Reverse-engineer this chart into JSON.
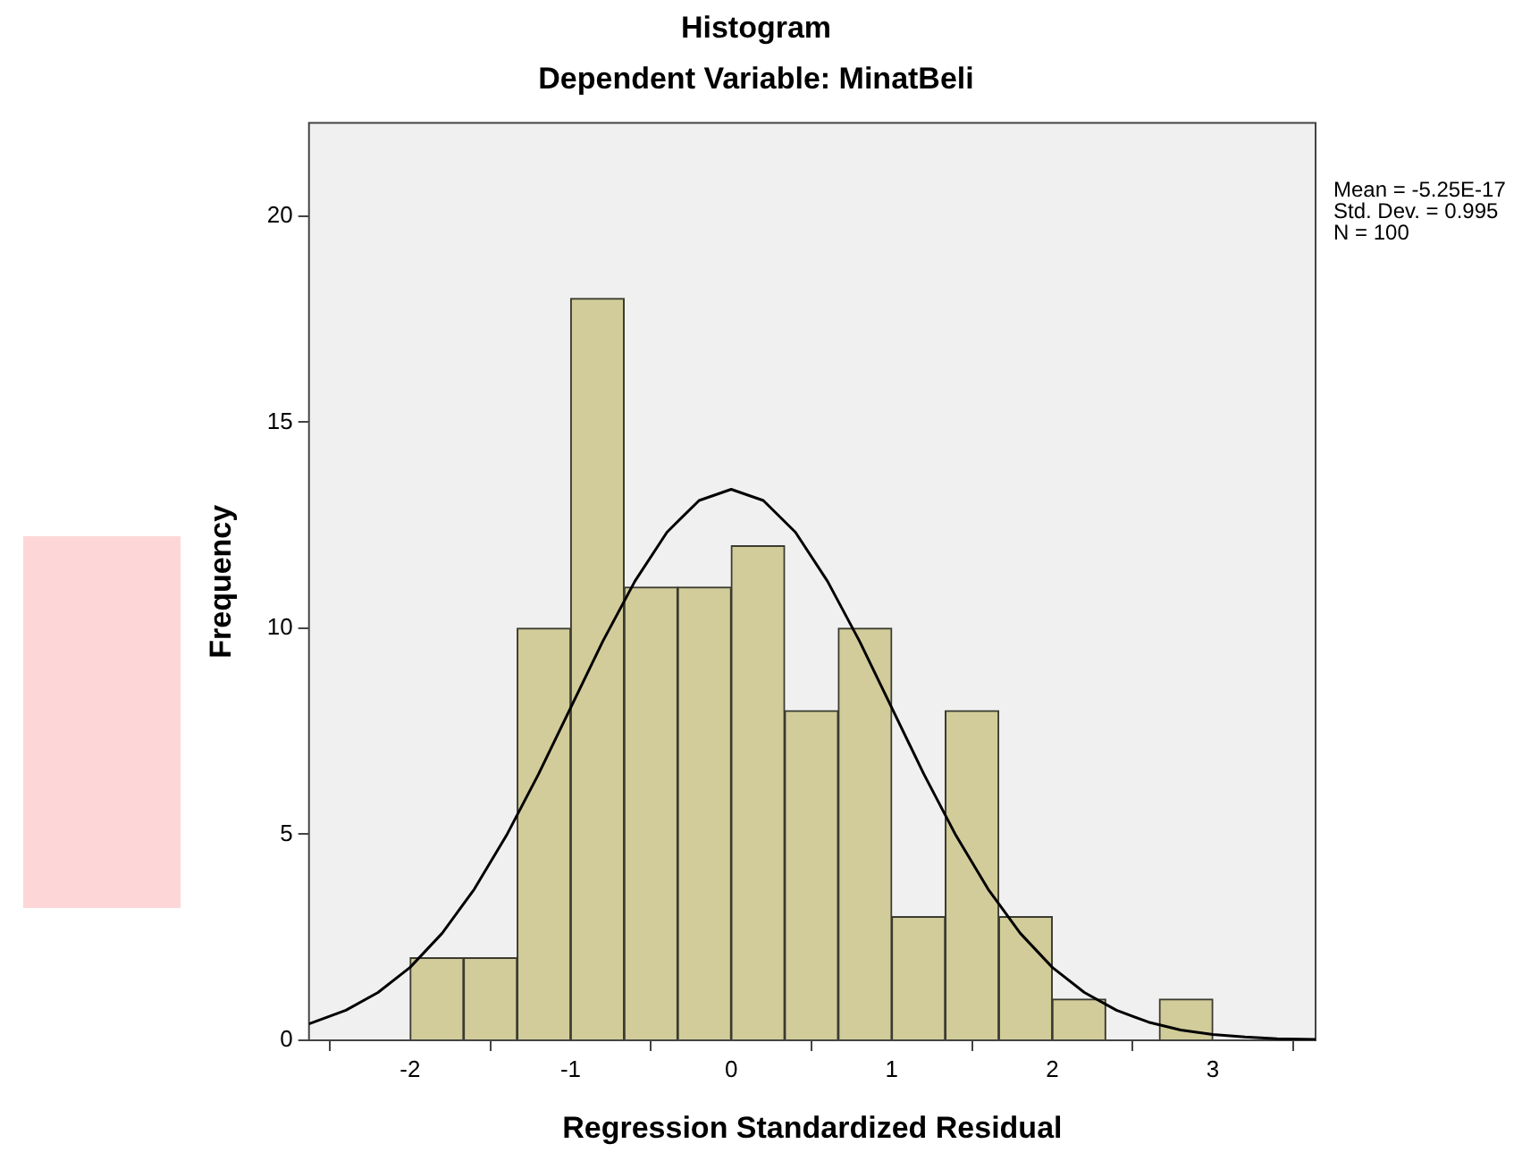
{
  "chart_data": {
    "type": "histogram",
    "title": "Histogram",
    "subtitle": "Dependent Variable: MinatBeli",
    "xlabel": "Regression Standardized Residual",
    "ylabel": "Frequency",
    "bins": [
      -2,
      -1.667,
      -1.333,
      -1,
      -0.667,
      -0.333,
      0,
      0.333,
      0.667,
      1,
      1.333,
      1.667,
      2,
      2.333,
      2.667,
      3
    ],
    "values": [
      2,
      2,
      10,
      18,
      11,
      11,
      12,
      8,
      10,
      3,
      8,
      3,
      1,
      0,
      1
    ],
    "color": "#d2cc9a",
    "series": [
      {
        "type": "line",
        "color": "#000000",
        "x": [
          -2.63,
          -2.4,
          -2.2,
          -2,
          -1.8,
          -1.6,
          -1.4,
          -1.2,
          -1,
          -0.8,
          -0.6,
          -0.4,
          -0.2,
          0,
          0.2,
          0.4,
          0.6,
          0.8,
          1,
          1.2,
          1.4,
          1.6,
          1.8,
          2,
          2.2,
          2.4,
          2.6,
          2.8,
          3,
          3.2,
          3.4,
          3.64
        ],
        "values": [
          0.4,
          0.73,
          1.16,
          1.77,
          2.6,
          3.67,
          4.97,
          6.46,
          8.07,
          9.68,
          11.14,
          12.33,
          13.1,
          13.37,
          13.1,
          12.33,
          11.14,
          9.68,
          8.07,
          6.46,
          4.97,
          3.67,
          2.6,
          1.77,
          1.16,
          0.73,
          0.44,
          0.25,
          0.14,
          0.08,
          0.04,
          0.02
        ]
      }
    ],
    "marker": "none",
    "line_style": "solid",
    "grid": false,
    "legend": false,
    "xlim": [
      -2.63,
      3.64
    ],
    "xticks": [
      -2,
      -1,
      0,
      1,
      2,
      3
    ],
    "ylim": [
      0,
      22.26
    ],
    "yticks": [
      0,
      5,
      10,
      15,
      20
    ],
    "annotations": [
      "Mean = -5.25E-17",
      "Std. Dev. = 0.995",
      "N = 100"
    ]
  }
}
